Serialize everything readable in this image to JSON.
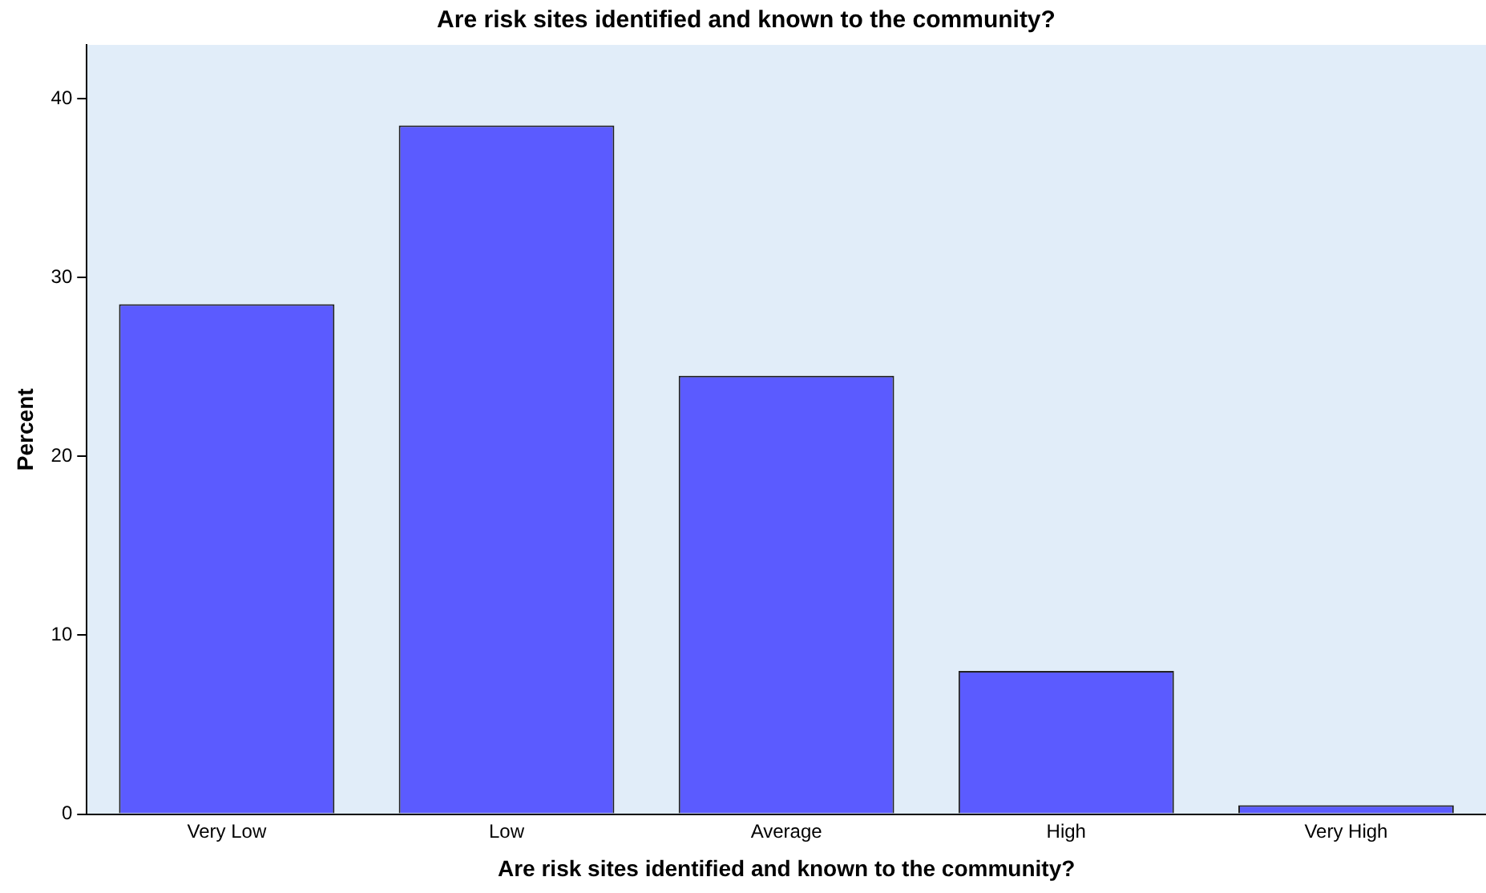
{
  "chart_data": {
    "type": "bar",
    "title": "Are risk sites identified and known to the community?",
    "xlabel": "Are risk sites identified and known to the community?",
    "ylabel": "Percent",
    "categories": [
      "Very Low",
      "Low",
      "Average",
      "High",
      "Very High"
    ],
    "values": [
      28.5,
      38.5,
      24.5,
      8.0,
      0.5
    ],
    "color": "#5b5bff",
    "ylim": [
      0,
      43
    ],
    "yticks": [
      0,
      10,
      20,
      30,
      40
    ],
    "grid": false,
    "legend": false
  }
}
